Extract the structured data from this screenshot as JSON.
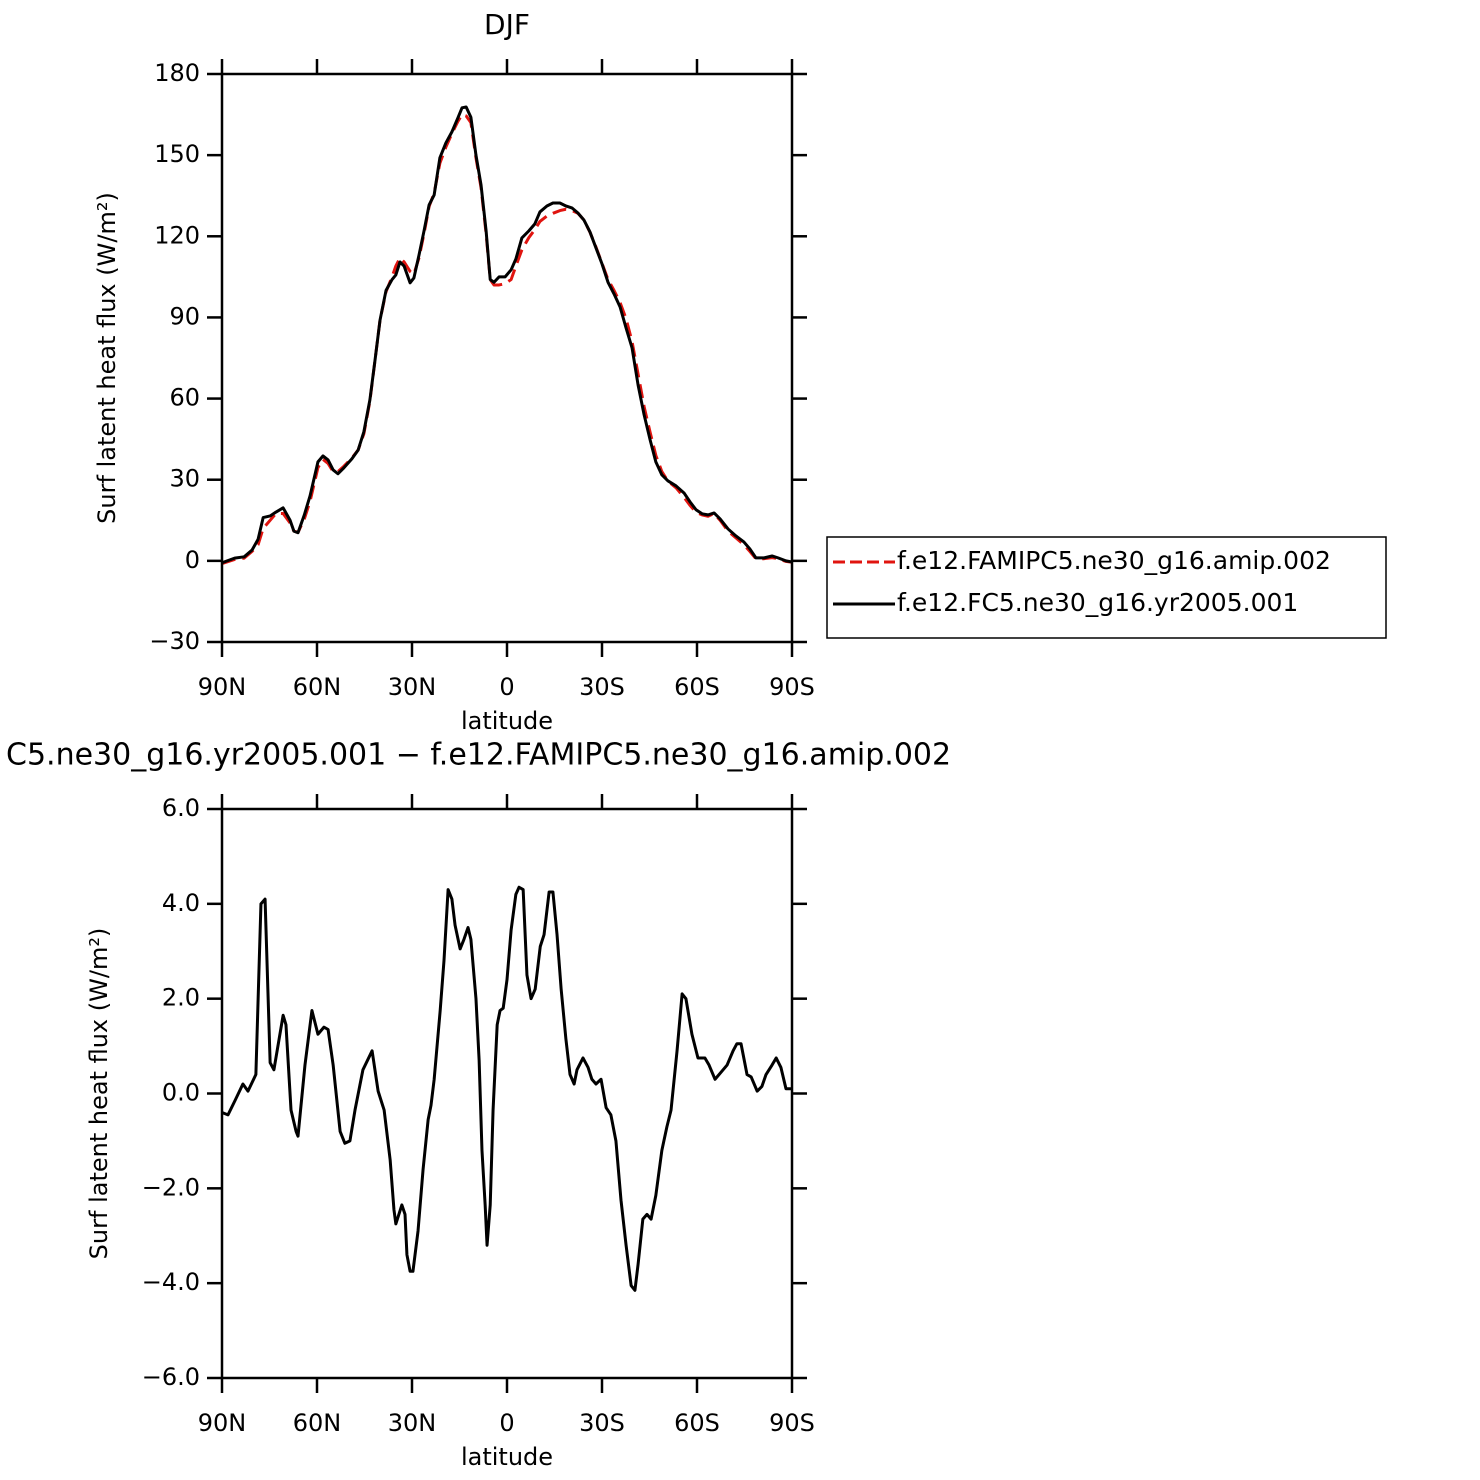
{
  "chart_data": [
    {
      "type": "line",
      "title": "DJF",
      "xlabel": "latitude",
      "ylabel": "Surf latent heat flux (W/m²)",
      "x": [
        90,
        86,
        83,
        80.5,
        78.6,
        77,
        74.8,
        73,
        70.7,
        68.5,
        67.3,
        66,
        64,
        62.2,
        59.7,
        58.1,
        56.5,
        54.9,
        53.4,
        51.5,
        49,
        47,
        45.2,
        43.3,
        41.7,
        40.1,
        38.2,
        36.3,
        35.1,
        33.8,
        32.5,
        30.6,
        29.4,
        27.8,
        26.2,
        24.6,
        23,
        21.2,
        19.3,
        17.4,
        15.5,
        14.2,
        12.9,
        11.4,
        9.8,
        8.2,
        6.6,
        5.3,
        4.1,
        2.5,
        0.6,
        -1.3,
        -2.8,
        -4.7,
        -6.9,
        -8.8,
        -10.4,
        -12.6,
        -14.5,
        -16.7,
        -18.6,
        -20.5,
        -22.4,
        -24.3,
        -26.2,
        -28.1,
        -30,
        -31.9,
        -33.8,
        -35.7,
        -37.6,
        -39.5,
        -41.4,
        -43.3,
        -45.2,
        -47,
        -48.9,
        -50.8,
        -53.4,
        -55.9,
        -57.8,
        -59.7,
        -61.6,
        -63.5,
        -65.4,
        -67.3,
        -69.8,
        -72.3,
        -74.8,
        -76.7,
        -78.6,
        -81.2,
        -83.7,
        -85.6,
        -88.1,
        -90
      ],
      "series": [
        {
          "name": "f.e12.FAMIPC5.ne30_g16.amip.002",
          "color": "#e0140f",
          "line_style": "dashed",
          "values": [
            -1,
            0.5,
            1,
            3.5,
            6,
            12,
            15,
            17.5,
            17.5,
            14,
            11,
            10.5,
            15.5,
            22,
            34.5,
            37.5,
            36,
            33,
            33,
            35,
            38,
            41,
            47,
            59,
            74,
            89,
            99.5,
            105,
            109,
            112,
            110.5,
            107,
            106,
            112,
            121,
            131,
            136,
            147,
            153,
            158,
            162.5,
            165,
            164.5,
            162,
            149,
            138,
            121,
            104,
            102,
            102,
            102.5,
            104,
            109,
            115,
            119.5,
            122.5,
            125.5,
            127.5,
            128.5,
            129.5,
            130,
            129.5,
            128.5,
            126,
            121.5,
            116,
            110,
            104,
            100,
            95.5,
            89.5,
            81,
            69,
            57,
            47.5,
            39,
            33,
            29.5,
            27,
            23.5,
            20.5,
            18,
            17,
            16.5,
            17.5,
            15,
            11,
            8.5,
            6,
            3.5,
            0.8,
            0.8,
            1.2,
            0.8,
            -0.2,
            -0.5
          ]
        },
        {
          "name": "f.e12.FC5.ne30_g16.yr2005.001",
          "color": "#000000",
          "line_style": "solid",
          "values": [
            -0.7,
            1,
            1.5,
            4,
            8,
            16,
            16.6,
            18,
            19.6,
            15,
            11,
            10.4,
            17,
            24,
            36.6,
            38.8,
            37.3,
            33.6,
            32.2,
            34.4,
            37.7,
            41,
            47.7,
            59.5,
            74,
            89,
            100,
            104,
            105.7,
            110.5,
            109,
            102.8,
            104.6,
            113,
            122,
            131.6,
            135.3,
            149,
            154.5,
            158.6,
            163.8,
            167.5,
            167.8,
            164,
            150,
            139,
            122,
            104,
            103,
            105,
            105,
            107.6,
            111.6,
            119.4,
            122,
            124.6,
            129,
            131.2,
            132.3,
            132.3,
            131.2,
            130.5,
            128.6,
            126,
            121.6,
            115.7,
            109.8,
            103,
            98.7,
            93.9,
            86.1,
            78.7,
            65,
            54,
            44.7,
            36.6,
            31.8,
            29.6,
            27.7,
            25.1,
            21.8,
            18.9,
            17.4,
            17,
            17.7,
            15.5,
            11.8,
            9.2,
            7,
            4.4,
            1.1,
            1.1,
            1.8,
            1.1,
            0,
            -0.4
          ]
        }
      ],
      "xlim": [
        90,
        -90
      ],
      "xticks": [
        {
          "value": 90,
          "label": "90N"
        },
        {
          "value": 60,
          "label": "60N"
        },
        {
          "value": 30,
          "label": "30N"
        },
        0,
        {
          "value": -30,
          "label": "30S"
        },
        {
          "value": -60,
          "label": "60S"
        },
        {
          "value": -90,
          "label": "90S"
        }
      ],
      "ylim": [
        -30,
        180
      ],
      "yticks": [
        {
          "value": -30,
          "label": "−30"
        },
        0,
        30,
        60,
        90,
        120,
        150,
        180
      ],
      "legend": "right"
    },
    {
      "type": "line",
      "title": "C5.ne30_g16.yr2005.001 − f.e12.FAMIPC5.ne30_g16.amip.002",
      "xlabel": "latitude",
      "ylabel": "Surf latent heat flux (W/m²)",
      "x": [
        90,
        88.1,
        85.9,
        83.4,
        81.8,
        79.3,
        77.7,
        76.4,
        74.8,
        73.6,
        70.7,
        69.8,
        68.2,
        66.6,
        66,
        63.8,
        61.6,
        59.7,
        57.8,
        56.5,
        54.9,
        52.7,
        51.2,
        49.6,
        48,
        45.5,
        42.6,
        40.7,
        38.8,
        36.9,
        35.7,
        35.1,
        33.2,
        32.2,
        31.6,
        30.6,
        29.7,
        28.1,
        26.5,
        24.9,
        24,
        23,
        21.1,
        19.9,
        18.6,
        17.4,
        16.4,
        14.8,
        13.6,
        12.3,
        11.4,
        9.8,
        8.8,
        7.9,
        6.9,
        6.3,
        5.3,
        4.4,
        3.1,
        2.2,
        1.2,
        0,
        -1.3,
        -2.8,
        -3.8,
        -5.1,
        -6.3,
        -7.6,
        -8.9,
        -10.5,
        -11.7,
        -13.3,
        -14.5,
        -15.8,
        -17.1,
        -18.6,
        -19.9,
        -21.2,
        -22.1,
        -24,
        -25.6,
        -26.8,
        -28.1,
        -29.7,
        -31.3,
        -32.8,
        -34.4,
        -36,
        -37.6,
        -39.2,
        -40.4,
        -41.4,
        -42.9,
        -44.2,
        -45.5,
        -47,
        -48.9,
        -50.5,
        -51.8,
        -53.7,
        -55.3,
        -56.5,
        -58.4,
        -60.3,
        -62.5,
        -63.8,
        -65.7,
        -67.6,
        -69.5,
        -71.4,
        -72.6,
        -73.9,
        -75.8,
        -77.1,
        -79,
        -80.5,
        -81.8,
        -83.7,
        -85,
        -86.5,
        -88.1,
        -90
      ],
      "series": [
        {
          "color": "#000000",
          "line_style": "solid",
          "values": [
            -0.4,
            -0.45,
            -0.15,
            0.2,
            0.05,
            0.4,
            4.0,
            4.1,
            0.65,
            0.5,
            1.65,
            1.45,
            -0.35,
            -0.8,
            -0.9,
            0.6,
            1.75,
            1.25,
            1.4,
            1.35,
            0.6,
            -0.8,
            -1.05,
            -1.0,
            -0.35,
            0.5,
            0.9,
            0.05,
            -0.35,
            -1.4,
            -2.45,
            -2.75,
            -2.35,
            -2.55,
            -3.4,
            -3.75,
            -3.75,
            -2.9,
            -1.6,
            -0.55,
            -0.25,
            0.3,
            1.75,
            2.8,
            4.3,
            4.1,
            3.55,
            3.05,
            3.25,
            3.5,
            3.25,
            2.0,
            0.7,
            -1.2,
            -2.35,
            -3.2,
            -2.35,
            -0.35,
            1.45,
            1.75,
            1.8,
            2.4,
            3.45,
            4.2,
            4.35,
            4.3,
            2.5,
            2.0,
            2.2,
            3.1,
            3.35,
            4.25,
            4.25,
            3.35,
            2.2,
            1.15,
            0.4,
            0.2,
            0.5,
            0.75,
            0.55,
            0.3,
            0.2,
            0.3,
            -0.3,
            -0.45,
            -1.0,
            -2.25,
            -3.2,
            -4.05,
            -4.15,
            -3.6,
            -2.65,
            -2.55,
            -2.65,
            -2.15,
            -1.2,
            -0.7,
            -0.35,
            0.9,
            2.1,
            2.0,
            1.25,
            0.75,
            0.75,
            0.6,
            0.3,
            0.45,
            0.6,
            0.9,
            1.05,
            1.05,
            0.4,
            0.35,
            0.05,
            0.15,
            0.4,
            0.6,
            0.75,
            0.55,
            0.1,
            0.1
          ]
        }
      ],
      "xlim": [
        90,
        -90
      ],
      "xticks": [
        {
          "value": 90,
          "label": "90N"
        },
        {
          "value": 60,
          "label": "60N"
        },
        {
          "value": 30,
          "label": "30N"
        },
        0,
        {
          "value": -30,
          "label": "30S"
        },
        {
          "value": -60,
          "label": "60S"
        },
        {
          "value": -90,
          "label": "90S"
        }
      ],
      "ylim": [
        -6,
        6
      ],
      "yticks": [
        {
          "value": -6,
          "label": "−6.0"
        },
        {
          "value": -4,
          "label": "−4.0"
        },
        {
          "value": -2,
          "label": "−2.0"
        },
        {
          "value": 0,
          "label": "0.0"
        },
        {
          "value": 2,
          "label": "2.0"
        },
        {
          "value": 4,
          "label": "4.0"
        },
        {
          "value": 6,
          "label": "6.0"
        }
      ]
    }
  ]
}
